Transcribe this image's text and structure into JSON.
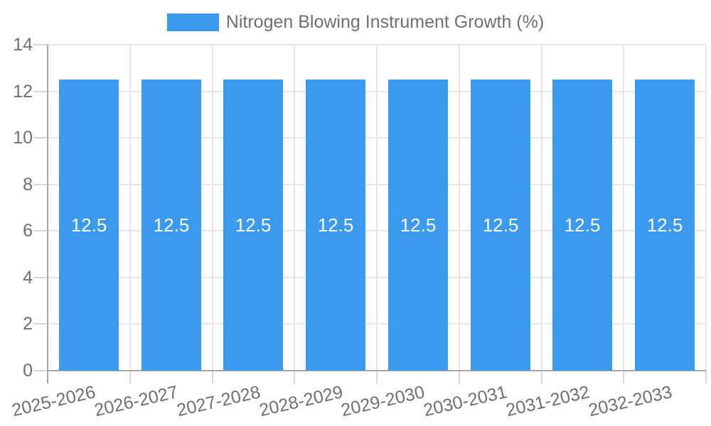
{
  "legend": {
    "label": "Nitrogen Blowing Instrument Growth (%)",
    "swatch_color": "#3B99EE"
  },
  "chart_data": {
    "type": "bar",
    "title": "",
    "xlabel": "",
    "ylabel": "",
    "categories": [
      "2025-2026",
      "2026-2027",
      "2027-2028",
      "2028-2029",
      "2029-2030",
      "2030-2031",
      "2031-2032",
      "2032-2033"
    ],
    "series": [
      {
        "name": "Nitrogen Blowing Instrument Growth (%)",
        "color": "#3B99EE",
        "values": [
          12.5,
          12.5,
          12.5,
          12.5,
          12.5,
          12.5,
          12.5,
          12.5
        ]
      }
    ],
    "bar_labels": [
      "12.5",
      "12.5",
      "12.5",
      "12.5",
      "12.5",
      "12.5",
      "12.5",
      "12.5"
    ],
    "ylim": [
      0,
      14
    ],
    "yticks": [
      0,
      2,
      4,
      6,
      8,
      10,
      12,
      14
    ],
    "grid": true,
    "legend_position": "top"
  },
  "colors": {
    "bar": "#3B99EE",
    "grid": "#e6e6e6",
    "tick": "#d6d6d6",
    "axis": "#a8a8a8",
    "tick_text": "#6f6f6f",
    "bar_label_text": "#ffffff"
  }
}
